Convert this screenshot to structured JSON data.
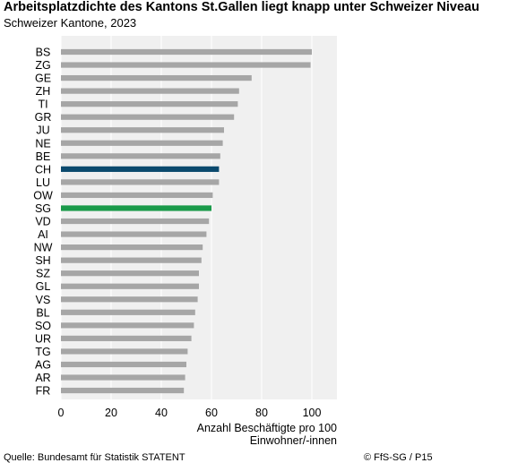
{
  "header": {
    "title": "Arbeitsplatzdichte des Kantons St.Gallen liegt knapp unter Schweizer Niveau",
    "subtitle": "Schweizer Kantone, 2023"
  },
  "footer": {
    "source": "Quelle: Bundesamt für Statistik STATENT",
    "copyright": "© FfS-SG / P15"
  },
  "colors": {
    "default_bar": "#a6a6a6",
    "ch_bar": "#0b4a6e",
    "sg_bar": "#1a9a4a",
    "plot_background": "#f0f0f0",
    "gridline": "#ffffff"
  },
  "chart_data": {
    "type": "bar",
    "orientation": "horizontal",
    "categories": [
      "BS",
      "ZG",
      "GE",
      "ZH",
      "TI",
      "GR",
      "JU",
      "NE",
      "BE",
      "CH",
      "LU",
      "OW",
      "SG",
      "VD",
      "AI",
      "NW",
      "SH",
      "SZ",
      "GL",
      "VS",
      "BL",
      "SO",
      "UR",
      "TG",
      "AG",
      "AR",
      "FR"
    ],
    "values": [
      100,
      99.5,
      76,
      71,
      70.5,
      69,
      65,
      64.5,
      63.5,
      63,
      63,
      60.5,
      60,
      59,
      58,
      56.5,
      56,
      55,
      55,
      54.5,
      53.5,
      53,
      52,
      50.5,
      50,
      49.5,
      49
    ],
    "highlight": {
      "CH": "ch_bar",
      "SG": "sg_bar"
    },
    "xlim": [
      0,
      110
    ],
    "xticks": [
      0,
      20,
      40,
      60,
      80,
      100
    ],
    "xlabel_line1": "Anzahl Beschäftigte pro 100",
    "xlabel_line2": "Einwohner/-innen",
    "grid": true
  }
}
